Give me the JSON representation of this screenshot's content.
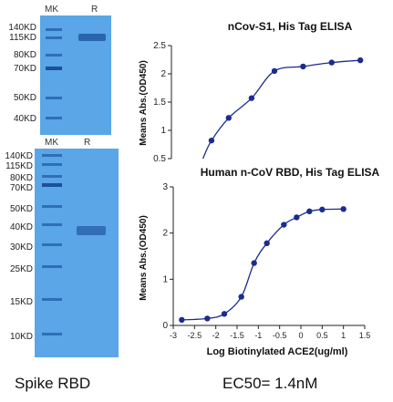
{
  "gels": [
    {
      "lane_labels": [
        "MK",
        "R"
      ],
      "markers": [
        "140KD",
        "115KD",
        "80KD",
        "70KD",
        "50KD",
        "40KD"
      ]
    },
    {
      "lane_labels": [
        "MK",
        "R"
      ],
      "markers": [
        "140KD",
        "115KD",
        "80KD",
        "70KD",
        "50KD",
        "40KD",
        "30KD",
        "25KD",
        "15KD",
        "10KD"
      ]
    }
  ],
  "caption_left": "Spike RBD",
  "caption_right": "EC50= 1.4nM",
  "colors": {
    "gel": "#5aa6e6",
    "band": "#1f4f9a",
    "curve": "#1a2d8f"
  },
  "chart_data": [
    {
      "type": "scatter",
      "title": "nCov-S1, His Tag ELISA",
      "ylabel": "Means Abs.(OD450)",
      "xlabel": "",
      "ylim": [
        0.5,
        2.5
      ],
      "yticks": [
        "0.5",
        "1",
        "1.5",
        "2",
        "2.5"
      ],
      "fit_curve": true,
      "x": [
        -1.1,
        -0.8,
        -0.4,
        0.0,
        0.5,
        1.0,
        1.5
      ],
      "y": [
        0.82,
        1.22,
        1.57,
        2.05,
        2.13,
        2.2,
        2.24
      ]
    },
    {
      "type": "scatter",
      "title": "Human n-CoV RBD, His Tag ELISA",
      "ylabel": "Means Abs.(OD450)",
      "xlabel": "Log Biotinylated ACE2(ug/ml)",
      "xlim": [
        -3,
        1.5
      ],
      "ylim": [
        0,
        3
      ],
      "xticks": [
        "-3",
        "-2.5",
        "-2",
        "-1.5",
        "-1",
        "-0.5",
        "0",
        "0.5",
        "1",
        "1.5"
      ],
      "yticks": [
        "0",
        "1",
        "2",
        "3"
      ],
      "fit_curve": true,
      "x": [
        -2.8,
        -2.2,
        -1.8,
        -1.4,
        -1.1,
        -0.8,
        -0.4,
        -0.1,
        0.2,
        0.5,
        1.0
      ],
      "y": [
        0.12,
        0.15,
        0.25,
        0.62,
        1.35,
        1.78,
        2.18,
        2.34,
        2.47,
        2.51,
        2.52
      ]
    }
  ]
}
